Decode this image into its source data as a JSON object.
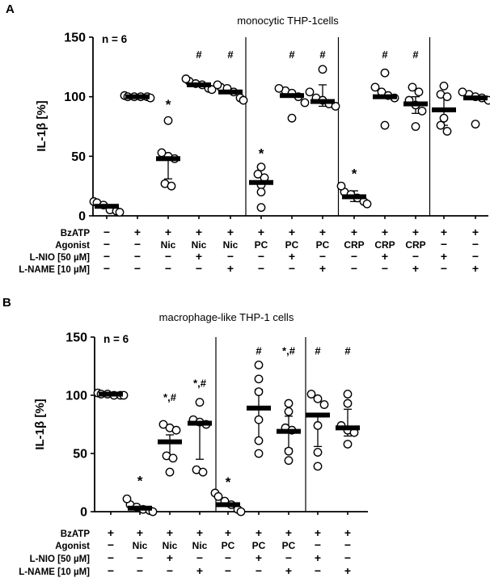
{
  "figure": {
    "background": "#ffffff",
    "ink": "#000000"
  },
  "chart_data": [
    {
      "type": "scatter",
      "panel_label": "A",
      "title": "monocytic THP-1cells",
      "n_annotation": "n = 6",
      "ylabel": "IL-1β [%]",
      "ylim": [
        0,
        150
      ],
      "yticks": [
        0,
        50,
        100,
        150
      ],
      "grid": false,
      "marker": "open-circle",
      "statistic": "median-bar-with-whiskers",
      "group_separators_after_column": [
        5,
        8,
        11
      ],
      "columns": [
        {
          "median": 8,
          "points": [
            12,
            11,
            9,
            5,
            4,
            3
          ],
          "whisker": null,
          "sig": "",
          "sig_y": null
        },
        {
          "median": 100,
          "points": [
            101,
            100,
            100,
            100,
            100,
            99
          ],
          "whisker": null,
          "sig": "",
          "sig_y": null
        },
        {
          "median": 48,
          "points": [
            80,
            53,
            50,
            48,
            27,
            25
          ],
          "whisker": [
            31,
            48
          ],
          "sig": "*",
          "sig_y": 95
        },
        {
          "median": 110,
          "points": [
            115,
            113,
            111,
            110,
            107,
            106
          ],
          "whisker": null,
          "sig": "#",
          "sig_y": 135
        },
        {
          "median": 104,
          "points": [
            110,
            108,
            107,
            104,
            99,
            97
          ],
          "whisker": null,
          "sig": "#",
          "sig_y": 135
        },
        {
          "median": 28,
          "points": [
            41,
            35,
            32,
            26,
            20,
            7
          ],
          "whisker": null,
          "sig": "*",
          "sig_y": 54
        },
        {
          "median": 101,
          "points": [
            107,
            105,
            103,
            100,
            95,
            82
          ],
          "whisker": null,
          "sig": "#",
          "sig_y": 135
        },
        {
          "median": 96,
          "points": [
            123,
            104,
            99,
            97,
            94,
            92
          ],
          "whisker": [
            92,
            110
          ],
          "sig": "#",
          "sig_y": 135
        },
        {
          "median": 16,
          "points": [
            25,
            20,
            18,
            15,
            12,
            10
          ],
          "whisker": [
            12,
            21
          ],
          "sig": "*",
          "sig_y": 37
        },
        {
          "median": 100,
          "points": [
            120,
            108,
            104,
            101,
            99,
            76
          ],
          "whisker": null,
          "sig": "#",
          "sig_y": 135
        },
        {
          "median": 94,
          "points": [
            108,
            104,
            97,
            93,
            88,
            75
          ],
          "whisker": [
            86,
            100
          ],
          "sig": "#",
          "sig_y": 135
        },
        {
          "median": 89,
          "points": [
            109,
            102,
            100,
            82,
            76,
            71
          ],
          "whisker": [
            76,
            101
          ],
          "sig": "",
          "sig_y": null
        },
        {
          "median": 99,
          "points": [
            104,
            102,
            100,
            99,
            97,
            77
          ],
          "whisker": null,
          "sig": "",
          "sig_y": null
        }
      ],
      "condition_rows": [
        {
          "label": "BzATP",
          "values": [
            "−",
            "+",
            "+",
            "+",
            "+",
            "+",
            "+",
            "+",
            "+",
            "+",
            "+",
            "+",
            "+"
          ]
        },
        {
          "label": "Agonist",
          "values": [
            "−",
            "−",
            "Nic",
            "Nic",
            "Nic",
            "PC",
            "PC",
            "PC",
            "CRP",
            "CRP",
            "CRP",
            "−",
            "−"
          ]
        },
        {
          "label": "L-NIO [50 µM]",
          "values": [
            "−",
            "−",
            "−",
            "+",
            "−",
            "−",
            "+",
            "−",
            "−",
            "+",
            "−",
            "+",
            "−"
          ]
        },
        {
          "label": "L-NAME [10 µM]",
          "values": [
            "−",
            "−",
            "−",
            "−",
            "+",
            "−",
            "−",
            "+",
            "−",
            "−",
            "+",
            "−",
            "+"
          ]
        }
      ]
    },
    {
      "type": "scatter",
      "panel_label": "B",
      "title": "macrophage-like THP-1 cells",
      "n_annotation": "n = 6",
      "ylabel": "IL-1β [%]",
      "ylim": [
        0,
        150
      ],
      "yticks": [
        0,
        50,
        100,
        150
      ],
      "grid": false,
      "marker": "open-circle",
      "statistic": "median-bar-with-whiskers",
      "group_separators_after_column": [
        4,
        7
      ],
      "columns": [
        {
          "median": 101,
          "points": [
            102,
            101,
            101,
            100,
            100,
            100
          ],
          "whisker": null,
          "sig": "",
          "sig_y": null
        },
        {
          "median": 3,
          "points": [
            11,
            6,
            4,
            2,
            1,
            0
          ],
          "whisker": null,
          "sig": "*",
          "sig_y": 28
        },
        {
          "median": 60,
          "points": [
            75,
            72,
            70,
            48,
            46,
            34
          ],
          "whisker": [
            48,
            66
          ],
          "sig": "*,#",
          "sig_y": 98
        },
        {
          "median": 76,
          "points": [
            94,
            79,
            77,
            75,
            36,
            34
          ],
          "whisker": [
            45,
            78
          ],
          "sig": "*,#",
          "sig_y": 110
        },
        {
          "median": 6,
          "points": [
            16,
            13,
            9,
            6,
            2,
            0
          ],
          "whisker": null,
          "sig": "*",
          "sig_y": 27
        },
        {
          "median": 89,
          "points": [
            126,
            114,
            103,
            79,
            61,
            50
          ],
          "whisker": [
            62,
            105
          ],
          "sig": "#",
          "sig_y": 138
        },
        {
          "median": 69,
          "points": [
            93,
            86,
            72,
            70,
            52,
            44
          ],
          "whisker": [
            54,
            82
          ],
          "sig": "*,#",
          "sig_y": 138
        },
        {
          "median": 83,
          "points": [
            101,
            97,
            92,
            74,
            51,
            39
          ],
          "whisker": [
            56,
            84
          ],
          "sig": "#",
          "sig_y": 138
        },
        {
          "median": 72,
          "points": [
            101,
            93,
            74,
            70,
            68,
            58
          ],
          "whisker": [
            65,
            88
          ],
          "sig": "#",
          "sig_y": 138
        }
      ],
      "condition_rows": [
        {
          "label": "BzATP",
          "values": [
            "+",
            "+",
            "+",
            "+",
            "+",
            "+",
            "+",
            "+",
            "+"
          ]
        },
        {
          "label": "Agonist",
          "values": [
            "−",
            "Nic",
            "Nic",
            "Nic",
            "PC",
            "PC",
            "PC",
            "−",
            "−"
          ]
        },
        {
          "label": "L-NIO [50 µM]",
          "values": [
            "−",
            "−",
            "+",
            "−",
            "−",
            "+",
            "−",
            "+",
            "−"
          ]
        },
        {
          "label": "L-NAME [10 µM]",
          "values": [
            "−",
            "−",
            "−",
            "+",
            "−",
            "−",
            "+",
            "−",
            "+"
          ]
        }
      ]
    }
  ]
}
